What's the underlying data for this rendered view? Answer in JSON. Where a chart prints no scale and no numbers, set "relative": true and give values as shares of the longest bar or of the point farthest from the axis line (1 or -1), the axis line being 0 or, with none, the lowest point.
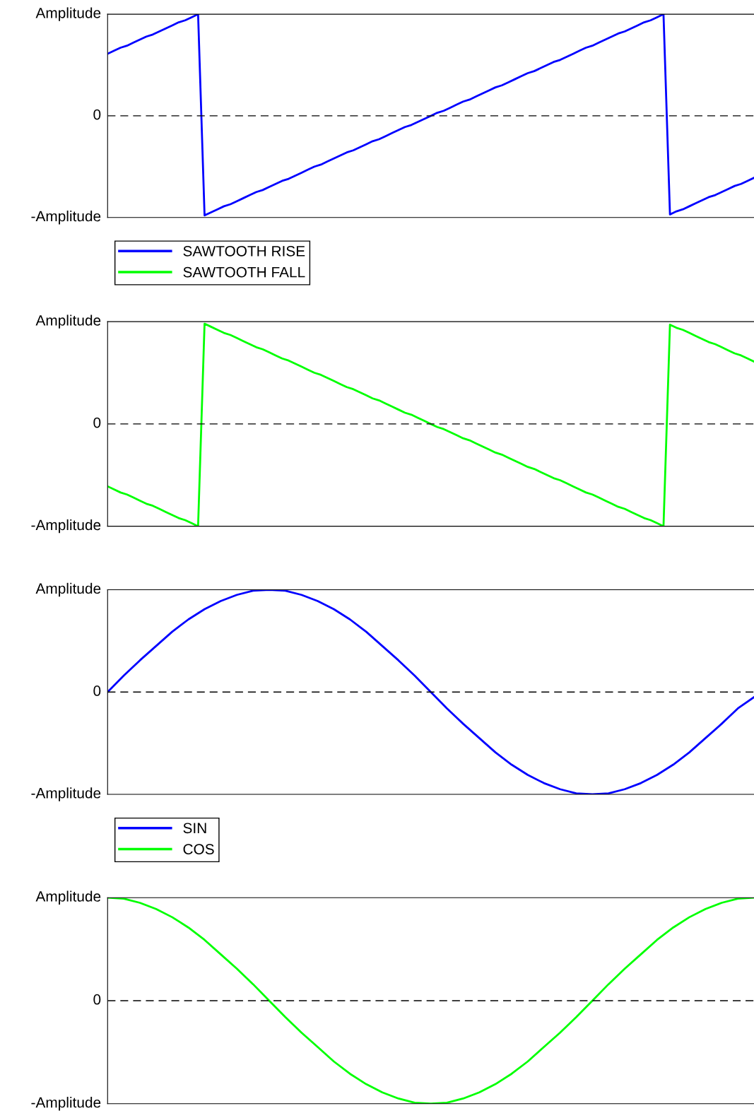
{
  "chart_data": [
    {
      "type": "line",
      "relative": true,
      "legend": "bottom left",
      "annotations": [
        "Amplitude",
        "0",
        "-Amplitude"
      ],
      "ref_lines": [
        {
          "axis": "y",
          "value": 0,
          "color": "#000000",
          "line_style": "dashed"
        }
      ],
      "categories": [
        null,
        null,
        null,
        null,
        null,
        null,
        null,
        null,
        null,
        null,
        null,
        null,
        null,
        null,
        null,
        null,
        null,
        null,
        null,
        null,
        null,
        null,
        null,
        null,
        null,
        null,
        null,
        null,
        null,
        null,
        null,
        null,
        null,
        null,
        null,
        null,
        null,
        null,
        null,
        null,
        null,
        null,
        null,
        null,
        null,
        null,
        null,
        null,
        null,
        null,
        null,
        null,
        null,
        null,
        null,
        null,
        null,
        null,
        null,
        null,
        null,
        null,
        null,
        null,
        null,
        null,
        null,
        null,
        null,
        null,
        null,
        null,
        null,
        null,
        null,
        null,
        null,
        null,
        null,
        null,
        null,
        null,
        null,
        null,
        null,
        null,
        null,
        null,
        null,
        null,
        null,
        null,
        null,
        null,
        null,
        null,
        null,
        null,
        null,
        null,
        null
      ],
      "series": [
        {
          "name": "SAWTOOTH RISE",
          "color": "#0000ff",
          "values": [
            0.61,
            0.64,
            0.67,
            0.69,
            0.72,
            0.75,
            0.78,
            0.8,
            0.83,
            0.86,
            0.89,
            0.92,
            0.94,
            0.97,
            1.0,
            -0.98,
            -0.95,
            -0.92,
            -0.89,
            -0.87,
            -0.84,
            -0.81,
            -0.78,
            -0.75,
            -0.73,
            -0.7,
            -0.67,
            -0.64,
            -0.62,
            -0.59,
            -0.56,
            -0.53,
            -0.5,
            -0.48,
            -0.45,
            -0.42,
            -0.39,
            -0.36,
            -0.34,
            -0.31,
            -0.28,
            -0.25,
            -0.23,
            -0.2,
            -0.17,
            -0.14,
            -0.11,
            -0.09,
            -0.06,
            -0.03,
            0.0,
            0.03,
            0.05,
            0.08,
            0.11,
            0.14,
            0.16,
            0.19,
            0.22,
            0.25,
            0.28,
            0.3,
            0.33,
            0.36,
            0.39,
            0.42,
            0.44,
            0.47,
            0.5,
            0.53,
            0.55,
            0.58,
            0.61,
            0.64,
            0.67,
            0.69,
            0.72,
            0.75,
            0.78,
            0.81,
            0.83,
            0.86,
            0.89,
            0.92,
            0.94,
            0.97,
            1.0,
            -0.97,
            -0.94,
            -0.92,
            -0.89,
            -0.86,
            -0.83,
            -0.8,
            -0.78,
            -0.75,
            -0.72,
            -0.69,
            -0.67,
            -0.64,
            -0.61
          ]
        }
      ]
    },
    {
      "type": "line",
      "relative": true,
      "legend": "top left",
      "annotations": [
        "Amplitude",
        "0",
        "-Amplitude"
      ],
      "ref_lines": [
        {
          "axis": "y",
          "value": 0,
          "color": "#000000",
          "line_style": "dashed"
        }
      ],
      "categories": [
        null,
        null,
        null,
        null,
        null,
        null,
        null,
        null,
        null,
        null,
        null,
        null,
        null,
        null,
        null,
        null,
        null,
        null,
        null,
        null,
        null,
        null,
        null,
        null,
        null,
        null,
        null,
        null,
        null,
        null,
        null,
        null,
        null,
        null,
        null,
        null,
        null,
        null,
        null,
        null,
        null,
        null,
        null,
        null,
        null,
        null,
        null,
        null,
        null,
        null,
        null,
        null,
        null,
        null,
        null,
        null,
        null,
        null,
        null,
        null,
        null,
        null,
        null,
        null,
        null,
        null,
        null,
        null,
        null,
        null,
        null,
        null,
        null,
        null,
        null,
        null,
        null,
        null,
        null,
        null,
        null,
        null,
        null,
        null,
        null,
        null,
        null,
        null,
        null,
        null,
        null,
        null,
        null,
        null,
        null,
        null,
        null,
        null,
        null,
        null,
        null
      ],
      "series": [
        {
          "name": "SAWTOOTH FALL",
          "color": "#00ff00",
          "values": [
            -0.61,
            -0.64,
            -0.67,
            -0.69,
            -0.72,
            -0.75,
            -0.78,
            -0.8,
            -0.83,
            -0.86,
            -0.89,
            -0.92,
            -0.94,
            -0.97,
            -1.0,
            0.98,
            0.95,
            0.92,
            0.89,
            0.87,
            0.84,
            0.81,
            0.78,
            0.75,
            0.73,
            0.7,
            0.67,
            0.64,
            0.62,
            0.59,
            0.56,
            0.53,
            0.5,
            0.48,
            0.45,
            0.42,
            0.39,
            0.36,
            0.34,
            0.31,
            0.28,
            0.25,
            0.23,
            0.2,
            0.17,
            0.14,
            0.11,
            0.09,
            0.06,
            0.03,
            0.0,
            -0.03,
            -0.05,
            -0.08,
            -0.11,
            -0.14,
            -0.16,
            -0.19,
            -0.22,
            -0.25,
            -0.28,
            -0.3,
            -0.33,
            -0.36,
            -0.39,
            -0.42,
            -0.44,
            -0.47,
            -0.5,
            -0.53,
            -0.55,
            -0.58,
            -0.61,
            -0.64,
            -0.67,
            -0.69,
            -0.72,
            -0.75,
            -0.78,
            -0.81,
            -0.83,
            -0.86,
            -0.89,
            -0.92,
            -0.94,
            -0.97,
            -1.0,
            0.97,
            0.94,
            0.92,
            0.89,
            0.86,
            0.83,
            0.8,
            0.78,
            0.75,
            0.72,
            0.69,
            0.67,
            0.64,
            0.61
          ]
        }
      ]
    },
    {
      "type": "line",
      "relative": true,
      "legend": "bottom left",
      "annotations": [
        "Amplitude",
        "0",
        "-Amplitude"
      ],
      "ref_lines": [
        {
          "axis": "y",
          "value": 0,
          "color": "#000000",
          "line_style": "dashed"
        }
      ],
      "categories": [
        null,
        null,
        null,
        null,
        null,
        null,
        null,
        null,
        null,
        null,
        null,
        null,
        null,
        null,
        null,
        null,
        null,
        null,
        null,
        null,
        null,
        null,
        null,
        null,
        null,
        null,
        null,
        null,
        null,
        null,
        null,
        null,
        null,
        null,
        null,
        null,
        null,
        null,
        null,
        null,
        null
      ],
      "series": [
        {
          "name": "SIN",
          "color": "#0000ff",
          "values": [
            0,
            0.16,
            0.31,
            0.45,
            0.59,
            0.71,
            0.81,
            0.89,
            0.95,
            0.99,
            1,
            0.99,
            0.95,
            0.89,
            0.81,
            0.71,
            0.59,
            0.45,
            0.31,
            0.16,
            0,
            -0.16,
            -0.31,
            -0.45,
            -0.59,
            -0.71,
            -0.81,
            -0.89,
            -0.95,
            -0.99,
            -1,
            -0.99,
            -0.95,
            -0.89,
            -0.81,
            -0.71,
            -0.59,
            -0.45,
            -0.31,
            -0.16,
            -0.05
          ]
        }
      ]
    },
    {
      "type": "line",
      "relative": true,
      "legend": "top left",
      "annotations": [
        "Amplitude",
        "0",
        "-Amplitude"
      ],
      "ref_lines": [
        {
          "axis": "y",
          "value": 0,
          "color": "#000000",
          "line_style": "dashed"
        }
      ],
      "categories": [
        null,
        null,
        null,
        null,
        null,
        null,
        null,
        null,
        null,
        null,
        null,
        null,
        null,
        null,
        null,
        null,
        null,
        null,
        null,
        null,
        null,
        null,
        null,
        null,
        null,
        null,
        null,
        null,
        null,
        null,
        null,
        null,
        null,
        null,
        null,
        null,
        null,
        null,
        null,
        null,
        null
      ],
      "series": [
        {
          "name": "COS",
          "color": "#00ff00",
          "values": [
            1,
            0.99,
            0.95,
            0.89,
            0.81,
            0.71,
            0.59,
            0.45,
            0.31,
            0.16,
            0,
            -0.16,
            -0.31,
            -0.45,
            -0.59,
            -0.71,
            -0.81,
            -0.89,
            -0.95,
            -0.99,
            -1,
            -0.99,
            -0.95,
            -0.89,
            -0.81,
            -0.71,
            -0.59,
            -0.45,
            -0.31,
            -0.16,
            0,
            0.16,
            0.31,
            0.45,
            0.59,
            0.71,
            0.81,
            0.89,
            0.95,
            0.99,
            1
          ]
        }
      ]
    }
  ]
}
